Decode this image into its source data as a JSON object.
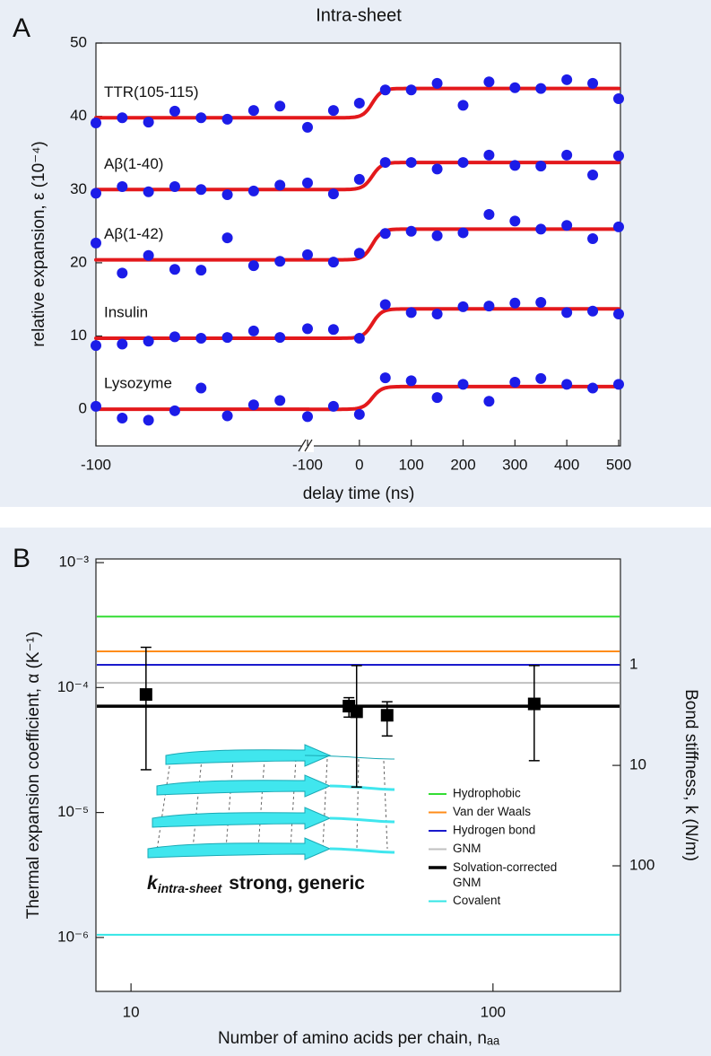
{
  "chart_data": [
    {
      "type": "scatter",
      "panel": "A",
      "title": "Intra-sheet",
      "x_label": "delay time (ns)",
      "y_label": "relative expansion, ε (10⁻⁴)",
      "ylim": [
        -5,
        50
      ],
      "yticks": [
        0,
        10,
        20,
        30,
        40,
        50
      ],
      "x_segments": [
        {
          "xlim": [
            -100,
            -19.5
          ],
          "xticks": [
            -100
          ],
          "x": [
            -100,
            -90,
            -80,
            -70,
            -60,
            -50,
            -40,
            -30
          ]
        },
        {
          "xlim": [
            -100,
            500
          ],
          "xticks": [
            -100,
            0,
            100,
            200,
            300,
            400,
            500
          ],
          "x": [
            -100,
            -50,
            0,
            50,
            100,
            150,
            200,
            250,
            300,
            350,
            400,
            450,
            500
          ]
        }
      ],
      "fit_color": "#e3191c",
      "series": [
        {
          "name": "TTR(105-115)",
          "color": "#1c1ce8",
          "fit": [
            39.8,
            43.8
          ],
          "values": [
            [
              39.1,
              39.8,
              39.2,
              40.7,
              39.8,
              39.6,
              40.8,
              41.4
            ],
            [
              38.5,
              40.8,
              41.8,
              43.6,
              43.6,
              44.5,
              41.5,
              44.7,
              43.9,
              43.8,
              45.0,
              44.5,
              42.4
            ]
          ]
        },
        {
          "name": "Aβ(1-40)",
          "color": "#1c1ce8",
          "fit": [
            30.0,
            33.7
          ],
          "values": [
            [
              29.5,
              30.4,
              29.7,
              30.4,
              30.0,
              29.3,
              29.8,
              30.6
            ],
            [
              30.9,
              29.4,
              31.4,
              33.7,
              33.7,
              32.8,
              33.7,
              34.7,
              33.3,
              33.2,
              34.7,
              32.0,
              34.6
            ]
          ]
        },
        {
          "name": "Aβ(1-42)",
          "color": "#1c1ce8",
          "fit": [
            20.4,
            24.6
          ],
          "values": [
            [
              22.7,
              18.6,
              21.0,
              19.1,
              19.0,
              23.4,
              19.6,
              20.2
            ],
            [
              21.1,
              20.1,
              21.3,
              24.0,
              24.3,
              23.7,
              24.1,
              26.6,
              25.7,
              24.6,
              25.1,
              23.3,
              24.9
            ]
          ]
        },
        {
          "name": "Insulin",
          "color": "#1c1ce8",
          "fit": [
            9.7,
            13.7
          ],
          "values": [
            [
              8.7,
              8.9,
              9.3,
              9.9,
              9.7,
              9.8,
              10.7,
              9.8
            ],
            [
              11.0,
              10.9,
              9.7,
              14.3,
              13.2,
              13.0,
              14.0,
              14.1,
              14.5,
              14.6,
              13.2,
              13.4,
              13.0
            ]
          ]
        },
        {
          "name": "Lysozyme",
          "color": "#1c1ce8",
          "fit": [
            0,
            3.1
          ],
          "values": [
            [
              0.4,
              -1.2,
              -1.5,
              -0.2,
              2.9,
              -0.9,
              0.6,
              1.2
            ],
            [
              -1.0,
              0.4,
              -0.7,
              4.3,
              3.9,
              1.6,
              3.4,
              1.1,
              3.7,
              4.2,
              3.4,
              2.9,
              3.4
            ]
          ]
        }
      ]
    },
    {
      "type": "scatter",
      "panel": "B",
      "x_label": "Number of amino acids per chain, nₐₐ",
      "y_label": "Thermal expansion coefficient, α (K⁻¹)",
      "y2_label": "Bond stiffness, k (N/m)",
      "xlog": true,
      "ylog": true,
      "y2log": true,
      "xlim": [
        8,
        225
      ],
      "xticks": [
        10,
        100
      ],
      "ylim": [
        3.7e-07,
        0.00107
      ],
      "yticks": [
        {
          "value": 0.001,
          "label": "10⁻³"
        },
        {
          "value": 0.0001,
          "label": "10⁻⁴"
        },
        {
          "value": 1e-05,
          "label": "10⁻⁵"
        },
        {
          "value": 1e-06,
          "label": "10⁻⁶"
        }
      ],
      "y2lim": [
        1780,
        0.088
      ],
      "y2ticks": [
        1,
        10,
        100
      ],
      "legend": "right",
      "reference_lines": [
        {
          "name": "Hydrophobic",
          "color": "#33dd33",
          "value": 0.00037,
          "linewidth": 2
        },
        {
          "name": "Van der Waals",
          "color": "#ff8c1a",
          "value": 0.000195,
          "linewidth": 2
        },
        {
          "name": "Hydrogen bond",
          "color": "#1a1acc",
          "value": 0.000152,
          "linewidth": 2
        },
        {
          "name": "GNM",
          "color": "#c0c0c0",
          "value": 0.000109,
          "linewidth": 2
        },
        {
          "name": "Solvation-corrected GNM",
          "color": "#000000",
          "value": 7.1e-05,
          "linewidth": 3.5
        },
        {
          "name": "Covalent",
          "color": "#33e6e6",
          "value": 1.05e-06,
          "linewidth": 2
        }
      ],
      "series": [
        {
          "color": "#000000",
          "x": [
            11,
            40,
            42,
            51,
            130
          ],
          "values": [
            8.8e-05,
            7.1e-05,
            6.4e-05,
            6e-05,
            7.4e-05
          ],
          "y_low": [
            2.2e-05,
            5.8e-05,
            1.6e-05,
            4.1e-05,
            2.6e-05
          ],
          "y_high": [
            0.00021,
            8.3e-05,
            0.00015,
            7.7e-05,
            0.00015
          ]
        }
      ],
      "inset_label": {
        "symbol": "k",
        "subscript": "intra-sheet",
        "text": "strong, generic"
      }
    }
  ]
}
